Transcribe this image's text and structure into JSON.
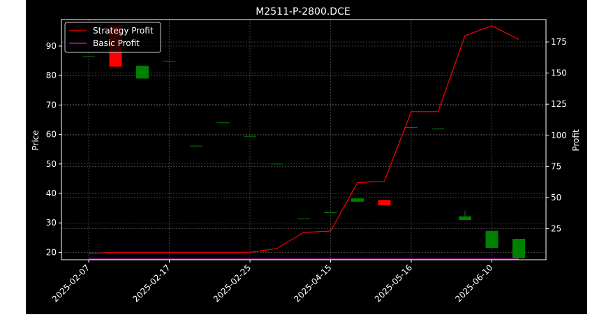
{
  "chart_data": {
    "type": "candlestick+line",
    "title": "M2511-P-2800.DCE",
    "ylabel_left": "Price",
    "ylabel_right": "Profit",
    "ylim_left": [
      17.5,
      99
    ],
    "ylim_right": [
      0,
      193
    ],
    "yticks_left": [
      "20",
      "30",
      "40",
      "50",
      "60",
      "70",
      "80",
      "90"
    ],
    "yticks_right": [
      "25",
      "50",
      "75",
      "100",
      "125",
      "150",
      "175"
    ],
    "xticks": [
      {
        "index": 0,
        "label": "2025-02-07"
      },
      {
        "index": 3,
        "label": "2025-02-17"
      },
      {
        "index": 6,
        "label": "2025-02-25"
      },
      {
        "index": 9,
        "label": "2025-04-15"
      },
      {
        "index": 12,
        "label": "2025-05-16"
      },
      {
        "index": 15,
        "label": "2025-06-10"
      }
    ],
    "grid": true,
    "legend_position": "upper-left",
    "colors": {
      "up": "#008000",
      "down": "#ff0000",
      "strategy": "#ff0000",
      "basic": "#ff00ff",
      "background": "#000000",
      "grid": "#808080"
    },
    "candles": [
      {
        "open": 86.5,
        "close": 86.5,
        "high": 86.5,
        "low": 86.5
      },
      {
        "open": 97.0,
        "close": 83.0,
        "high": 97.0,
        "low": 83.0
      },
      {
        "open": 79.0,
        "close": 83.3,
        "high": 83.3,
        "low": 79.0
      },
      {
        "open": 85.0,
        "close": 85.0,
        "high": 85.0,
        "low": 85.0
      },
      {
        "open": 56.2,
        "close": 56.2,
        "high": 56.2,
        "low": 56.2
      },
      {
        "open": 64.1,
        "close": 64.1,
        "high": 64.1,
        "low": 64.1
      },
      {
        "open": 59.5,
        "close": 59.5,
        "high": 59.5,
        "low": 59.5
      },
      {
        "open": 50.1,
        "close": 50.1,
        "high": 50.1,
        "low": 50.1
      },
      {
        "open": 31.5,
        "close": 31.5,
        "high": 31.5,
        "low": 31.5
      },
      {
        "open": 33.6,
        "close": 33.6,
        "high": 33.6,
        "low": 33.6
      },
      {
        "open": 37.2,
        "close": 38.3,
        "high": 38.3,
        "low": 37.2
      },
      {
        "open": 37.8,
        "close": 36.0,
        "high": 37.8,
        "low": 36.0
      },
      {
        "open": 62.5,
        "close": 62.5,
        "high": 62.5,
        "low": 62.5
      },
      {
        "open": 62.0,
        "close": 62.0,
        "high": 62.0,
        "low": 62.0
      },
      {
        "open": 31.0,
        "close": 32.2,
        "high": 34.2,
        "low": 31.0
      },
      {
        "open": 21.5,
        "close": 27.3,
        "high": 27.3,
        "low": 21.5
      },
      {
        "open": 18.0,
        "close": 24.6,
        "high": 24.6,
        "low": 18.0
      }
    ],
    "series": [
      {
        "name": "Strategy Profit",
        "values": [
          5,
          6,
          6,
          6,
          6,
          6,
          6,
          9,
          22,
          23,
          62,
          63,
          119,
          119,
          180,
          188,
          177
        ]
      },
      {
        "name": "Basic Profit",
        "values": [
          0.5,
          0.5,
          0.5,
          0.5,
          0.5,
          0.5,
          0.5,
          0.5,
          0.5,
          0.5,
          0.5,
          0.5,
          0.5,
          0.5,
          0.5,
          0.5,
          0.5
        ]
      }
    ]
  }
}
